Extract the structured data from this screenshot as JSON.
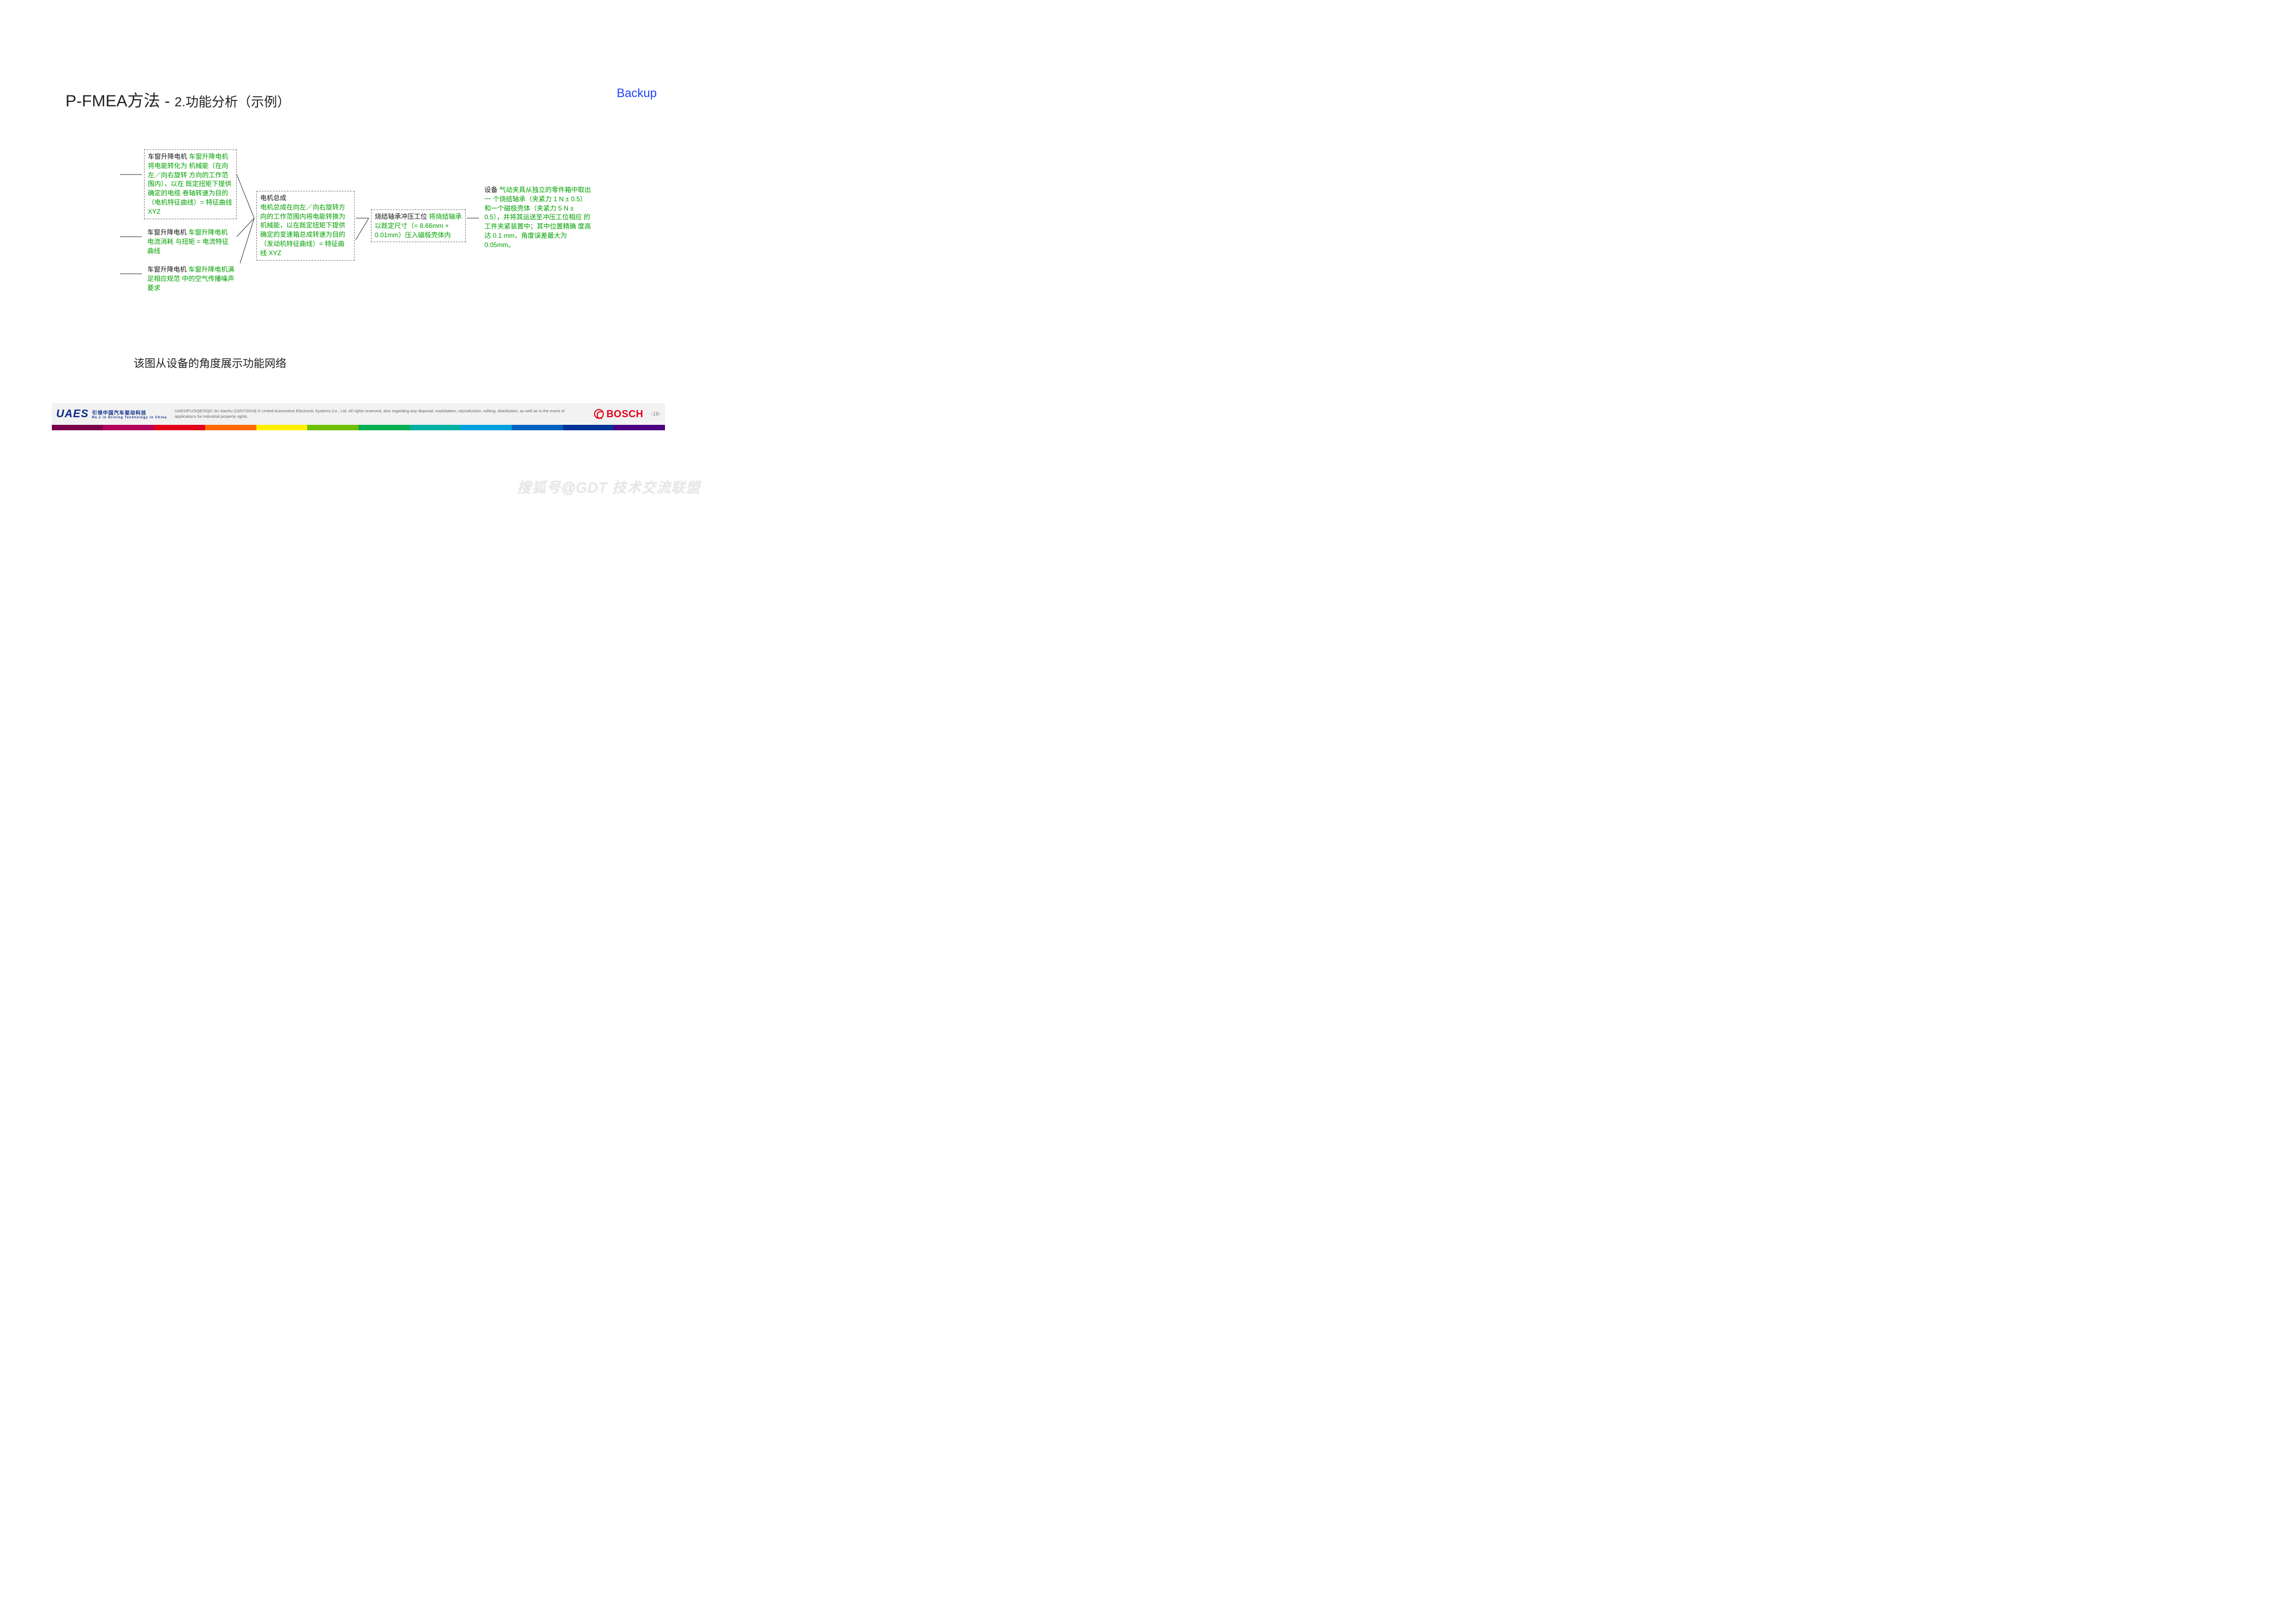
{
  "header": {
    "title_main": "P-FMEA方法 - ",
    "title_sub": "2.功能分析（示例）",
    "backup": "Backup"
  },
  "diagram": {
    "box1": {
      "label": "车窗升降电机",
      "text": "车窗升降电机将电能转化为 机械能（在向左／向右旋转 方向的工作范围内），以在 既定扭矩下提供确定的电缆 卷轴转速为目的\n（电机特征曲线）= 特征曲线 XYZ"
    },
    "box2": {
      "label": "车窗升降电机",
      "text": "车窗升降电机电流消耗 与扭矩 = 电流特征曲线"
    },
    "box3": {
      "label": "车窗升降电机",
      "text": "车窗升降电机满足相应规范 中的空气传播噪声要求"
    },
    "box4": {
      "label": "电机总成",
      "text": "电机总成在向左／向右旋转方向的工作范围内将电能转换为机械能，以在既定扭矩下提供确定的变速箱总成转速为目的（发动机特征曲线）= 特征曲线 XYZ"
    },
    "box5": {
      "label": "烧结轴承冲压工位",
      "text": "将烧结轴承以既定尺寸（= 8.66mm + 0.01mm）压入磁极壳体内"
    },
    "box6": {
      "label": "设备",
      "text": "气动夹具从独立的零件箱中取出一 个烧结轴承（夹紧力 1 N ± 0.5） 和一个磁极壳体（夹紧力 5 N ± 0.5），并将其运送至冲压工位相应 的工件夹紧装置中；其中位置精确 度高达 0.1 mm，角度误差最大为 0.05mm。"
    },
    "caption": "该图从设备的角度展示功能网络"
  },
  "footer": {
    "uaes": "UAES",
    "uaes_cn": "引领中国汽车驱动科技",
    "uaes_en": "No.1 in Driving Technology in China",
    "disclaimer": "UAES/PU/SQE/SQD Jin Xianhu |10/07/2018| © United Automotive Electronic Systems Co., Ltd. All rights reserved, also regarding any disposal, exploitation, reproduction, editing, distribution, as well as in the event of applications for industrial property rights.",
    "bosch": "BOSCH",
    "page": "-18-",
    "bar_colors": [
      "#7b004b",
      "#b1005d",
      "#e2001a",
      "#ff6a00",
      "#ffef00",
      "#6fbf00",
      "#00b050",
      "#00b0a0",
      "#00a0e0",
      "#0060c0",
      "#003399",
      "#4b0082"
    ]
  },
  "watermark": "搜狐号@GDT 技术交流联盟",
  "colors": {
    "green": "#00a000",
    "black": "#111111",
    "blue": "#2040ff"
  }
}
